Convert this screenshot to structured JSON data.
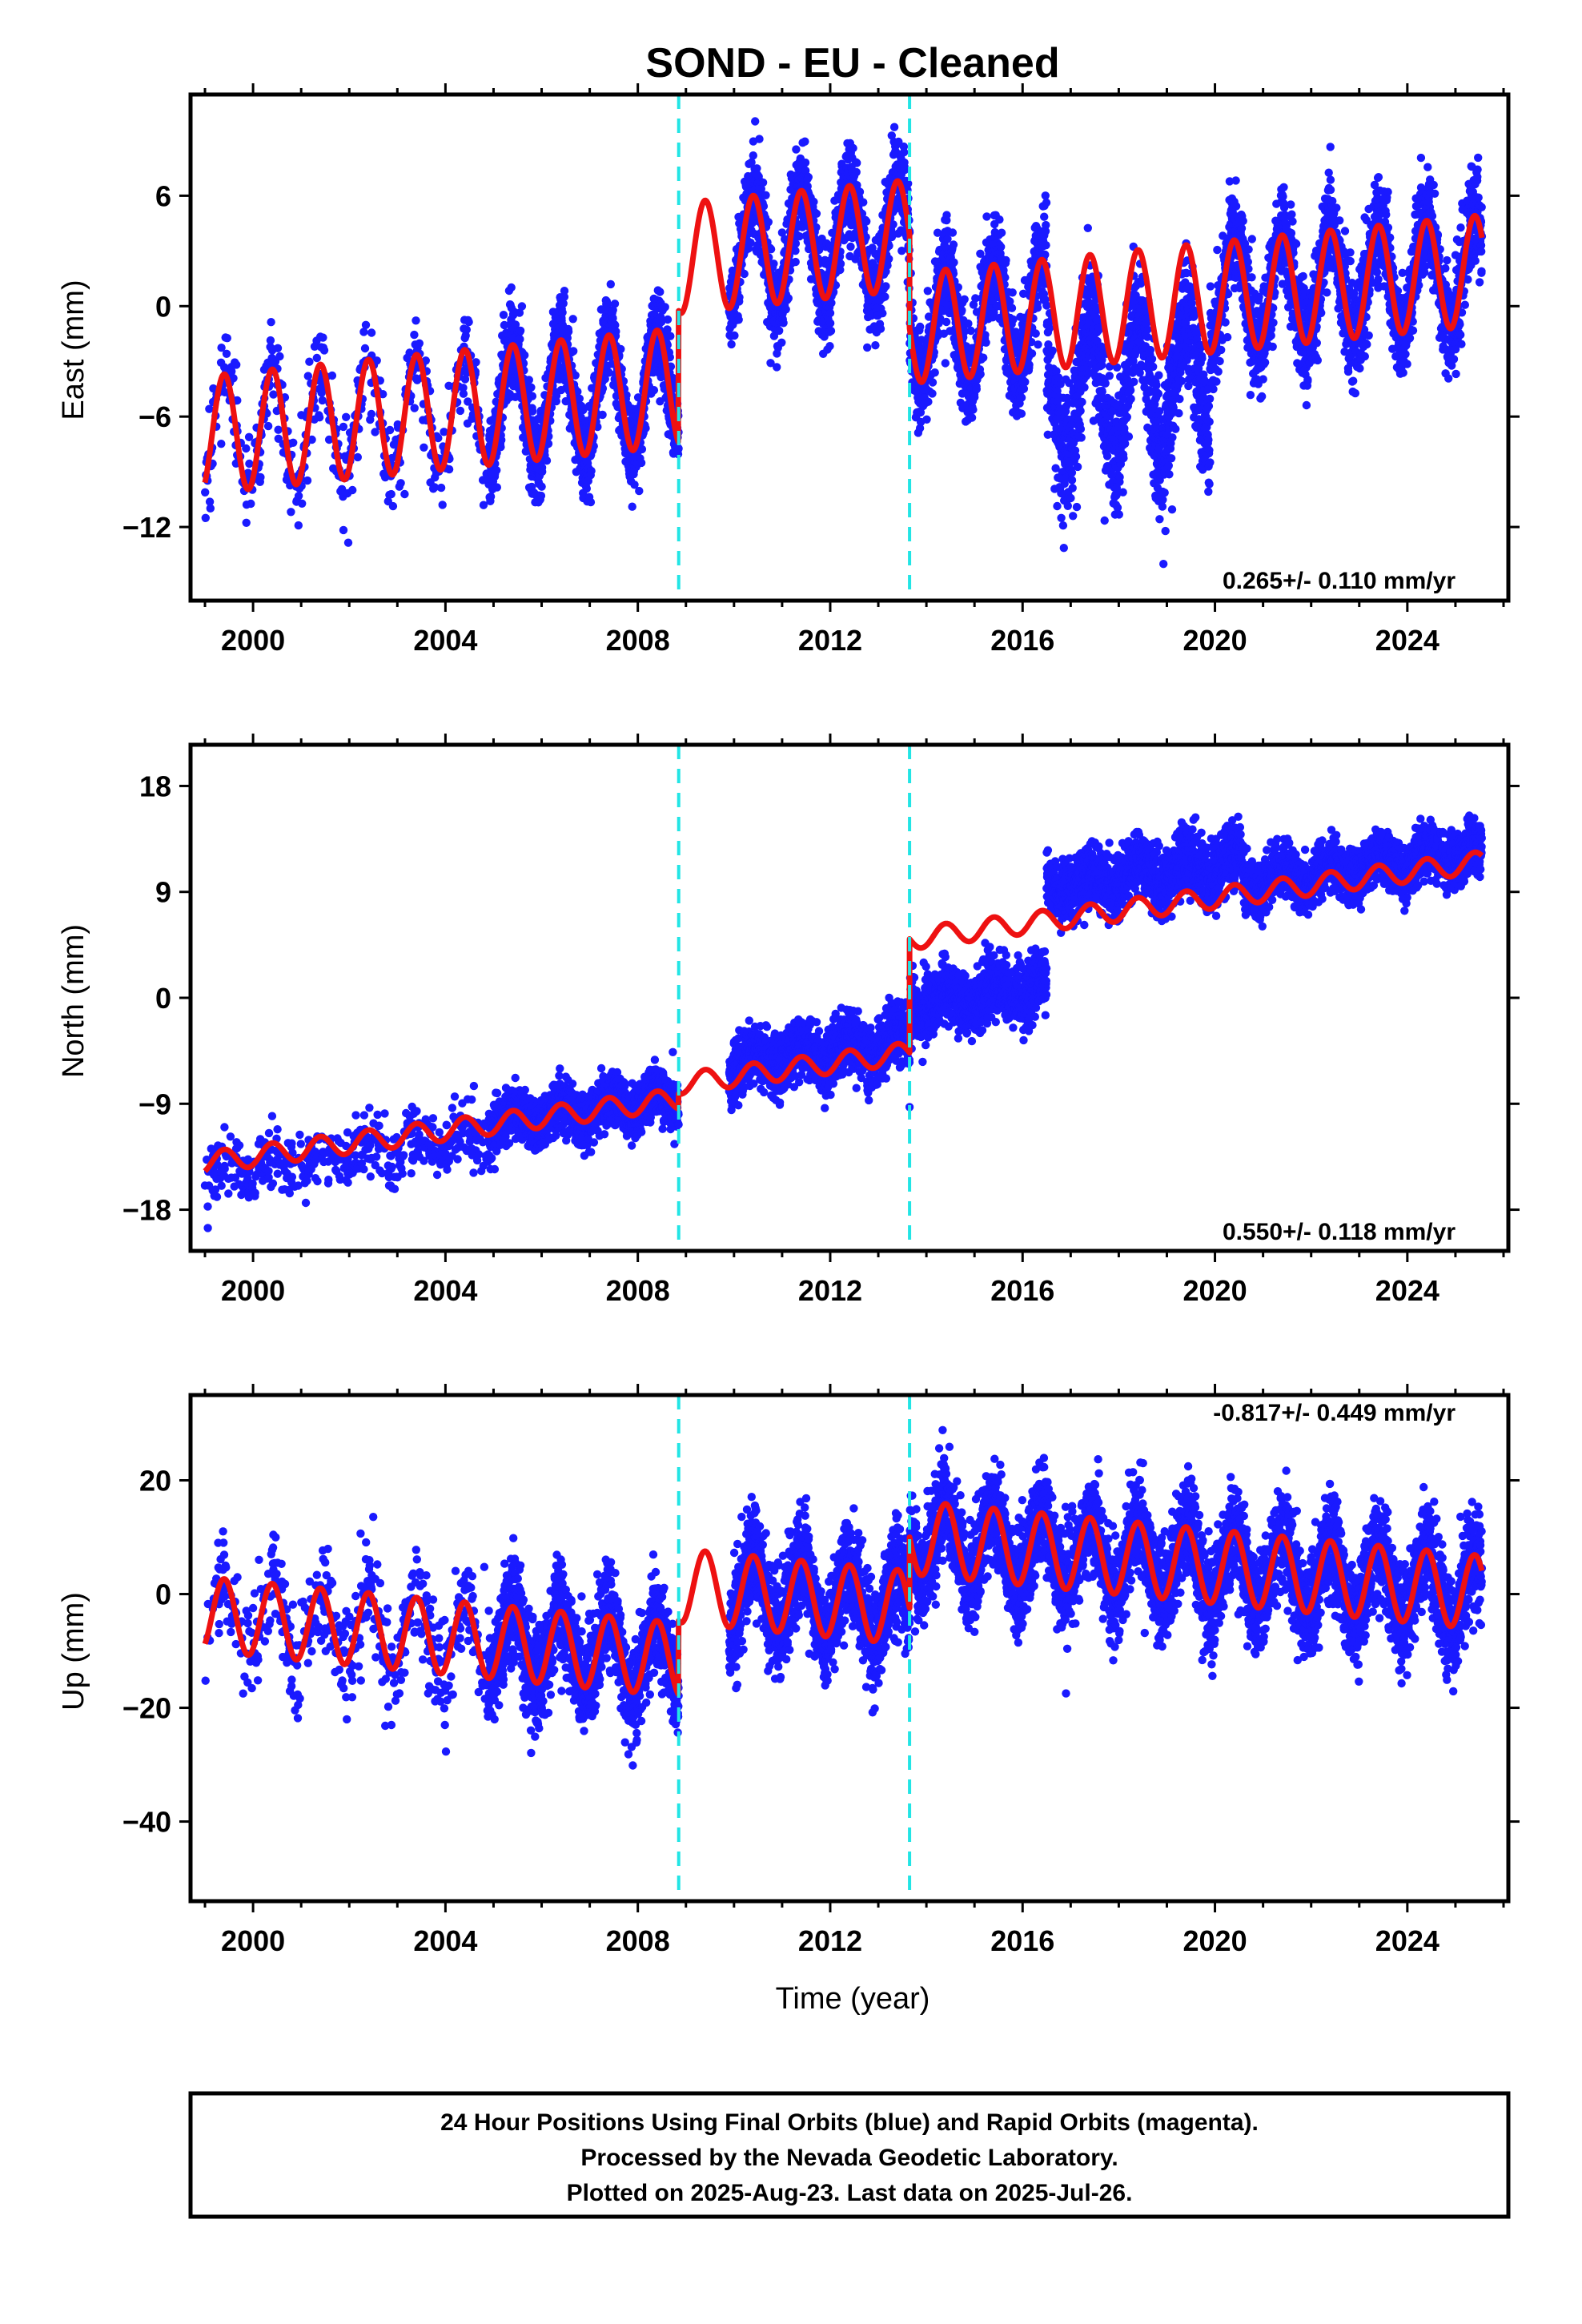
{
  "title": "SOND  - EU - Cleaned",
  "chart_data": [
    {
      "type": "scatter",
      "panel": "east",
      "ylabel": "East (mm)",
      "xlabel": "",
      "xlim": [
        1998.7,
        2026.1
      ],
      "ylim": [
        -16.0,
        11.5
      ],
      "xticks": [
        2000,
        2004,
        2008,
        2012,
        2016,
        2020,
        2024
      ],
      "yticks": [
        6,
        0,
        -6,
        -12
      ],
      "ytick_labels": [
        "6",
        "0",
        "−6",
        "−12"
      ],
      "rate_label": "0.265+/- 0.110 mm/yr",
      "rate_position": "bottom-right",
      "offsets": [
        2008.85,
        2013.65
      ],
      "model_segments": [
        {
          "x0": 1999.0,
          "x1": 2008.85,
          "base0": -7.0,
          "slope": 0.265,
          "amp": 3.2
        },
        {
          "x0": 2008.85,
          "x1": 2013.65,
          "base0": 2.6,
          "slope": 0.265,
          "amp": 3.0
        },
        {
          "x0": 2013.65,
          "x1": 2025.55,
          "base0": -1.2,
          "slope": 0.265,
          "amp": 3.0
        }
      ],
      "data_segments": [
        {
          "x0": 1999.0,
          "x1": 2004.9,
          "density": 0.22,
          "noise": 1.3
        },
        {
          "x0": 2004.9,
          "x1": 2008.85,
          "density": 1.0,
          "noise": 1.2
        },
        {
          "x0": 2009.9,
          "x1": 2013.65,
          "density": 1.0,
          "noise": 1.2
        },
        {
          "x0": 2013.65,
          "x1": 2016.5,
          "density": 1.0,
          "noise": 1.4
        },
        {
          "x0": 2016.5,
          "x1": 2019.9,
          "density": 1.0,
          "noise": 1.8,
          "shift": -4.5,
          "amp": 3.5
        },
        {
          "x0": 2019.9,
          "x1": 2025.55,
          "density": 1.0,
          "noise": 1.3
        }
      ]
    },
    {
      "type": "scatter",
      "panel": "north",
      "ylabel": "North (mm)",
      "xlabel": "",
      "xlim": [
        1998.7,
        2026.1
      ],
      "ylim": [
        -21.5,
        21.5
      ],
      "xticks": [
        2000,
        2004,
        2008,
        2012,
        2016,
        2020,
        2024
      ],
      "yticks": [
        18,
        9,
        0,
        -9,
        -18
      ],
      "ytick_labels": [
        "18",
        "9",
        "0",
        "−9",
        "−18"
      ],
      "rate_label": "0.550+/- 0.118 mm/yr",
      "rate_position": "bottom-right",
      "offsets": [
        2008.85,
        2013.65
      ],
      "model_segments": [
        {
          "x0": 1999.0,
          "x1": 2008.85,
          "base0": -14.0,
          "slope": 0.55,
          "amp": 0.9
        },
        {
          "x0": 2008.85,
          "x1": 2013.65,
          "base0": -7.3,
          "slope": 0.55,
          "amp": 0.9
        },
        {
          "x0": 2013.65,
          "x1": 2025.55,
          "base0": 5.0,
          "slope": 0.55,
          "amp": 0.9
        }
      ],
      "data_segments": [
        {
          "x0": 1999.0,
          "x1": 2004.9,
          "density": 0.22,
          "noise": 1.4,
          "shift": -1.0
        },
        {
          "x0": 2004.9,
          "x1": 2008.85,
          "density": 1.0,
          "noise": 1.1
        },
        {
          "x0": 2009.9,
          "x1": 2013.65,
          "density": 1.0,
          "noise": 1.2,
          "shift": 1.0
        },
        {
          "x0": 2013.65,
          "x1": 2016.5,
          "density": 1.0,
          "noise": 1.3,
          "shift": -5.7
        },
        {
          "x0": 2016.5,
          "x1": 2020.6,
          "density": 1.0,
          "noise": 1.3,
          "shift": 2.8
        },
        {
          "x0": 2020.6,
          "x1": 2025.55,
          "density": 1.0,
          "noise": 1.1,
          "shift": 0.8
        }
      ]
    },
    {
      "type": "scatter",
      "panel": "up",
      "ylabel": "Up (mm)",
      "xlabel": "Time (year)",
      "xlim": [
        1998.7,
        2026.1
      ],
      "ylim": [
        -54.0,
        35.0
      ],
      "xticks": [
        2000,
        2004,
        2008,
        2012,
        2016,
        2020,
        2024
      ],
      "yticks": [
        20,
        0,
        -20,
        -40
      ],
      "ytick_labels": [
        "20",
        "0",
        "−20",
        "−40"
      ],
      "rate_label": "-0.817+/- 0.449 mm/yr",
      "rate_position": "top-right",
      "offsets": [
        2008.85,
        2013.65
      ],
      "model_segments": [
        {
          "x0": 1999.0,
          "x1": 2008.85,
          "base0": -3.5,
          "slope": -0.817,
          "amp": 6.5
        },
        {
          "x0": 2008.85,
          "x1": 2013.65,
          "base0": 1.5,
          "slope": -0.817,
          "amp": 6.5
        },
        {
          "x0": 2013.65,
          "x1": 2025.55,
          "base0": 10.0,
          "slope": -0.817,
          "amp": 6.5
        }
      ],
      "data_segments": [
        {
          "x0": 1999.0,
          "x1": 2004.9,
          "density": 0.22,
          "noise": 4.5
        },
        {
          "x0": 2004.9,
          "x1": 2008.85,
          "density": 1.0,
          "noise": 4.5
        },
        {
          "x0": 2009.9,
          "x1": 2013.65,
          "density": 1.0,
          "noise": 4.5
        },
        {
          "x0": 2013.65,
          "x1": 2025.55,
          "density": 1.0,
          "noise": 4.5
        }
      ]
    }
  ],
  "series_colors": {
    "data": "#1a1aff",
    "model": "#ee1111",
    "offset_line": "#22e5e5"
  },
  "footer": {
    "line1": "24 Hour Positions Using Final Orbits (blue) and Rapid Orbits (magenta).",
    "line2": "Processed by the Nevada Geodetic Laboratory.",
    "line3": "Plotted on 2025-Aug-23. Last data on 2025-Jul-26."
  }
}
